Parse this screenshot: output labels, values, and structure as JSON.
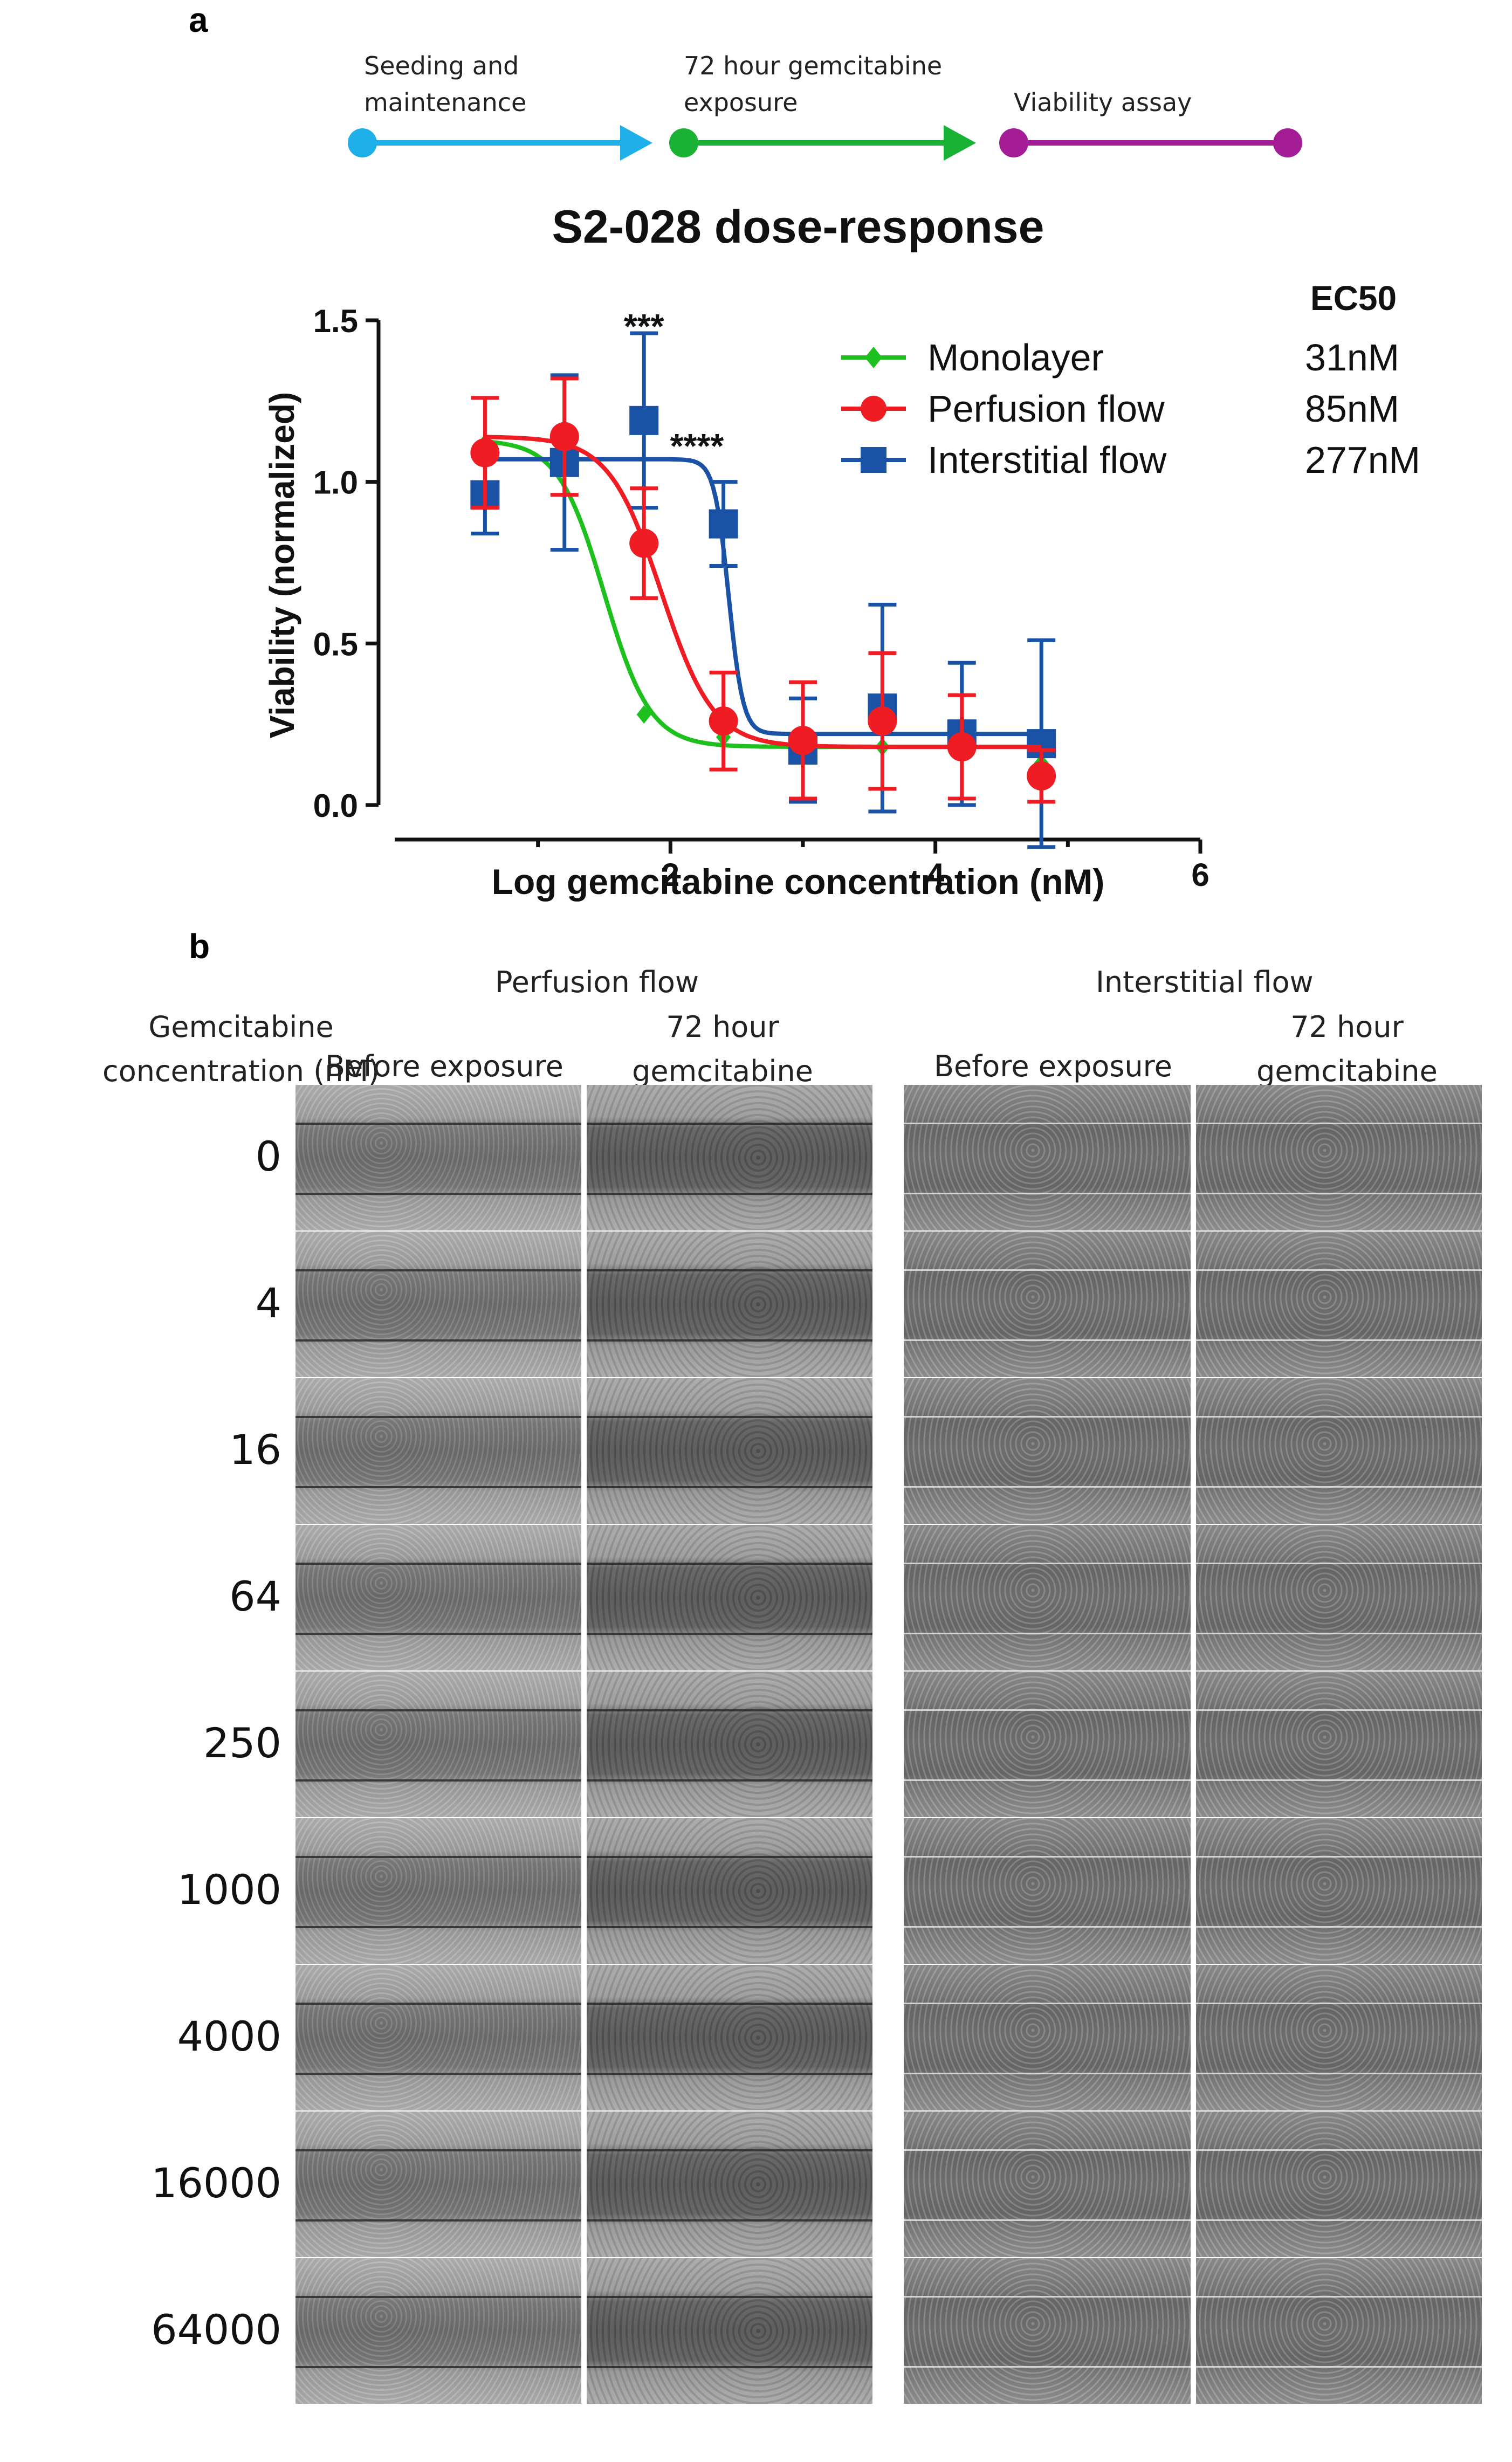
{
  "panel_a": {
    "letter": "a",
    "timeline": {
      "steps": [
        {
          "label_line1": "Seeding and",
          "label_line2": "maintenance",
          "color": "#1fb0ea"
        },
        {
          "label_line1": "72 hour gemcitabine",
          "label_line2": "exposure",
          "color": "#19b234"
        },
        {
          "label_line1": "Viability assay",
          "label_line2": "",
          "color": "#a51d96"
        }
      ]
    }
  },
  "chart_data": {
    "type": "line",
    "title": "S2-028 dose-response",
    "xlabel": "Log gemcitabine concentration (nM)",
    "ylabel": "Viability (normalized)",
    "xlim": [
      0,
      6
    ],
    "ylim": [
      0,
      1.5
    ],
    "xticks": [
      "2",
      "4",
      "6"
    ],
    "yticks": [
      "0.0",
      "0.5",
      "1.0",
      "1.5"
    ],
    "ec50_header": "EC50",
    "annotations": [
      {
        "text": "***",
        "x": 1.8,
        "y": 1.52
      },
      {
        "text": "****",
        "x": 2.2,
        "y": 1.15
      }
    ],
    "series": [
      {
        "name": "Monolayer",
        "color": "#1ec01e",
        "marker": "diamond",
        "ec50": "31nM",
        "fit": {
          "top": 1.13,
          "bottom": 0.18,
          "logec50": 1.5,
          "hill": 2.5
        },
        "points": [
          {
            "x": 0.6,
            "y": 1.12,
            "err": 0.0
          },
          {
            "x": 1.2,
            "y": 1.07,
            "err": 0.0
          },
          {
            "x": 1.8,
            "y": 0.28,
            "err": 0.0
          },
          {
            "x": 2.4,
            "y": 0.21,
            "err": 0.0
          },
          {
            "x": 3.0,
            "y": 0.19,
            "err": 0.0
          },
          {
            "x": 3.6,
            "y": 0.18,
            "err": 0.0
          },
          {
            "x": 4.2,
            "y": 0.18,
            "err": 0.0
          },
          {
            "x": 4.8,
            "y": 0.13,
            "err": 0.0
          }
        ]
      },
      {
        "name": "Perfusion flow",
        "color": "#ef1c24",
        "marker": "circle",
        "ec50": "85nM",
        "fit": {
          "top": 1.14,
          "bottom": 0.18,
          "logec50": 1.93,
          "hill": 2.2
        },
        "points": [
          {
            "x": 0.6,
            "y": 1.09,
            "err": 0.17
          },
          {
            "x": 1.2,
            "y": 1.14,
            "err": 0.18
          },
          {
            "x": 1.8,
            "y": 0.81,
            "err": 0.17
          },
          {
            "x": 2.4,
            "y": 0.26,
            "err": 0.15
          },
          {
            "x": 3.0,
            "y": 0.2,
            "err": 0.18
          },
          {
            "x": 3.6,
            "y": 0.26,
            "err": 0.21
          },
          {
            "x": 4.2,
            "y": 0.18,
            "err": 0.16
          },
          {
            "x": 4.8,
            "y": 0.09,
            "err": 0.08
          }
        ]
      },
      {
        "name": "Interstitial flow",
        "color": "#1a52a5",
        "marker": "square",
        "ec50": "277nM",
        "fit": {
          "top": 1.07,
          "bottom": 0.22,
          "logec50": 2.44,
          "hill": 8.0
        },
        "points": [
          {
            "x": 0.6,
            "y": 0.96,
            "err": 0.12
          },
          {
            "x": 1.2,
            "y": 1.06,
            "err": 0.27
          },
          {
            "x": 1.8,
            "y": 1.19,
            "err": 0.27
          },
          {
            "x": 2.4,
            "y": 0.87,
            "err": 0.13
          },
          {
            "x": 3.0,
            "y": 0.17,
            "err": 0.16
          },
          {
            "x": 3.6,
            "y": 0.3,
            "err": 0.32
          },
          {
            "x": 4.2,
            "y": 0.22,
            "err": 0.22
          },
          {
            "x": 4.8,
            "y": 0.19,
            "err": 0.32
          }
        ]
      }
    ]
  },
  "panel_b": {
    "letter": "b",
    "row_header_line1": "Gemcitabine",
    "row_header_line2": "concentration (nM)",
    "groups": [
      {
        "name": "Perfusion flow",
        "col1": "Before exposure",
        "col2_line1": "72 hour",
        "col2_line2": "gemcitabine"
      },
      {
        "name": "Interstitial flow",
        "col1": "Before exposure",
        "col2_line1": "72 hour",
        "col2_line2": "gemcitabine"
      }
    ],
    "rows": [
      "0",
      "4",
      "16",
      "64",
      "250",
      "1000",
      "4000",
      "16000",
      "64000"
    ]
  }
}
